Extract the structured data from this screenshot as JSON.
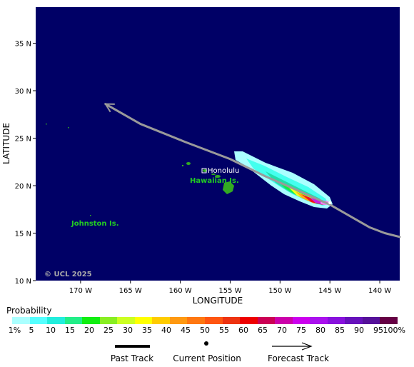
{
  "chart_data": {
    "type": "map",
    "xlabel": "LONGITUDE",
    "ylabel": "LATITUDE",
    "x_ticks": [
      {
        "value": -170,
        "label": "170 W"
      },
      {
        "value": -165,
        "label": "165 W"
      },
      {
        "value": -160,
        "label": "160 W"
      },
      {
        "value": -155,
        "label": "155 W"
      },
      {
        "value": -150,
        "label": "150 W"
      },
      {
        "value": -145,
        "label": "145 W"
      },
      {
        "value": -140,
        "label": "140 W"
      }
    ],
    "y_ticks": [
      {
        "value": 10,
        "label": "10 N"
      },
      {
        "value": 15,
        "label": "15 N"
      },
      {
        "value": 20,
        "label": "20 N"
      },
      {
        "value": 25,
        "label": "25 N"
      },
      {
        "value": 30,
        "label": "30 N"
      },
      {
        "value": 35,
        "label": "35 N"
      }
    ],
    "xlim": [
      -174.5,
      -138.0
    ],
    "ylim": [
      10,
      38.8
    ],
    "forecast_track": [
      {
        "lon": -138.0,
        "lat": 14.6
      },
      {
        "lon": -139.5,
        "lat": 15.0
      },
      {
        "lon": -141.0,
        "lat": 15.6
      },
      {
        "lon": -143.0,
        "lat": 16.8
      },
      {
        "lon": -145.0,
        "lat": 18.0
      },
      {
        "lon": -148.0,
        "lat": 19.4
      },
      {
        "lon": -151.5,
        "lat": 21.0
      },
      {
        "lon": -155.0,
        "lat": 22.8
      },
      {
        "lon": -159.5,
        "lat": 24.6
      },
      {
        "lon": -164.0,
        "lat": 26.5
      },
      {
        "lon": -167.5,
        "lat": 28.6
      }
    ],
    "current_position": {
      "lon": -145.0,
      "lat": 18.2
    },
    "places": [
      {
        "name": "Honolulu",
        "lon": -157.8,
        "lat": 21.3
      },
      {
        "name": "Hawaiian Is.",
        "lon": -156.0,
        "lat": 20.2
      },
      {
        "name": "Johnston Is.",
        "lon": -169.5,
        "lat": 16.7
      }
    ],
    "copyright": "© UCL 2025",
    "colors": {
      "ocean": "#000066",
      "land": "#33aa22",
      "track": "#9a9a9a",
      "place_label": "#22cc22"
    }
  },
  "legend": {
    "title": "Probability",
    "colors": [
      "#aaffff",
      "#55ffff",
      "#22eedd",
      "#22ee88",
      "#11ee11",
      "#88ee22",
      "#ccff22",
      "#ffff00",
      "#ffcc00",
      "#ff9911",
      "#ff7711",
      "#ff5511",
      "#ee3311",
      "#ee0000",
      "#cc0055",
      "#cc00aa",
      "#cc00ee",
      "#aa11ee",
      "#8811dd",
      "#6611bb",
      "#551199",
      "#660044"
    ],
    "labels": [
      "1%",
      "5",
      "10",
      "15",
      "20",
      "25",
      "30",
      "35",
      "40",
      "45",
      "50",
      "55",
      "60",
      "65",
      "70",
      "75",
      "80",
      "85",
      "90",
      "95",
      "100%"
    ],
    "past_track": "Past Track",
    "current_position": "Current Position",
    "forecast_track": "Forecast Track"
  }
}
